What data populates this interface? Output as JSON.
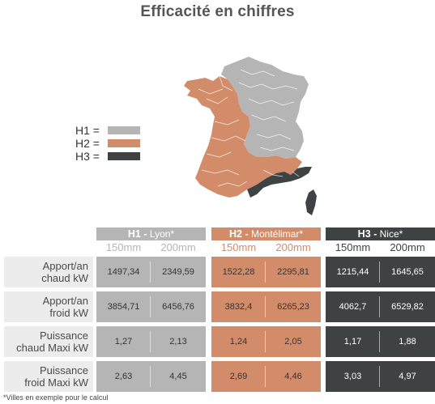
{
  "title": "Efficacité en chiffres",
  "colors": {
    "h1": "#b5b5b5",
    "h2": "#d38c6a",
    "h3": "#3f4243",
    "label_bg": "#ececec"
  },
  "legend": [
    {
      "label": "H1 =",
      "color": "#b5b5b5"
    },
    {
      "label": "H2 =",
      "color": "#d38c6a"
    },
    {
      "label": "H3 =",
      "color": "#3f4243"
    }
  ],
  "zones": [
    {
      "code": "H1 -",
      "city": "Lyon*",
      "cols": [
        "150mm",
        "200mm"
      ]
    },
    {
      "code": "H2 -",
      "city": "Montélimar*",
      "cols": [
        "150mm",
        "200mm"
      ]
    },
    {
      "code": "H3 -",
      "city": "Nice*",
      "cols": [
        "150mm",
        "200mm"
      ]
    }
  ],
  "rows": [
    {
      "l1": "Apport/an",
      "l2": "chaud kW",
      "values": [
        "1497,34",
        "2349,59",
        "1522,28",
        "2295,81",
        "1215,44",
        "1645,65"
      ]
    },
    {
      "l1": "Apport/an",
      "l2": "froid kW",
      "values": [
        "3854,71",
        "6456,76",
        "3832,4",
        "6265,23",
        "4062,7",
        "6529,82"
      ]
    },
    {
      "l1": "Puissance",
      "l2": "chaud Maxi kW",
      "values": [
        "1,27",
        "2,13",
        "1,24",
        "2,05",
        "1,17",
        "1,88"
      ]
    },
    {
      "l1": "Puissance",
      "l2": "froid Maxi kW",
      "values": [
        "2,63",
        "4,45",
        "2,69",
        "4,46",
        "3,03",
        "4,97"
      ]
    }
  ],
  "footnote": "*Villes en exemple pour le calcul"
}
